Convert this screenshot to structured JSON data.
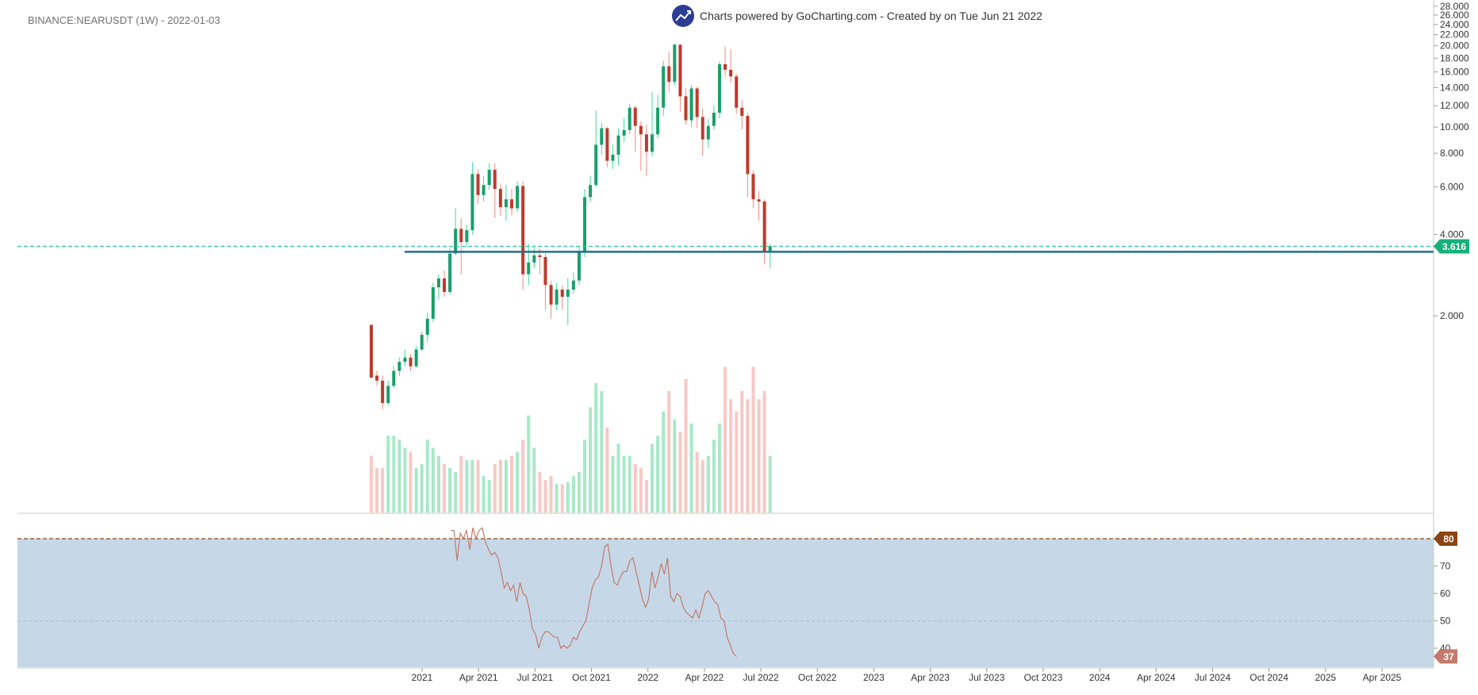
{
  "header": {
    "symbol_label": "BINANCE:NEARUSDT (1W) - 2022-01-03",
    "branding_text": "Charts powered by GoCharting.com - Created by  on Tue Jun 21 2022",
    "logo_icon": "trend-up-icon",
    "logo_color": "#2d3d95"
  },
  "colors": {
    "up": "#1a9e6a",
    "down": "#c0392b",
    "up_volume": "#a8e8c8",
    "down_volume": "#f8c8c4",
    "support_line": "#1f6d96",
    "last_price_line": "#2ec69a",
    "rsi_line": "#c47a6c",
    "rsi_band_fill": "#c6d8e8",
    "rsi_80_line": "#8b4513"
  },
  "chart_data": [
    {
      "type": "candlestick",
      "scale": "log",
      "ylim": [
        1.2,
        28
      ],
      "y_ticks": [
        "2.000",
        "4.000",
        "6.000",
        "8.000",
        "10.000",
        "12.000",
        "14.000",
        "16.000",
        "18.000",
        "20.000",
        "22.000",
        "24.000",
        "26.000",
        "28.000"
      ],
      "x_ticks": [
        "2021",
        "Apr 2021",
        "Jul 2021",
        "Oct 2021",
        "2022",
        "Apr 2022",
        "Jul 2022",
        "Oct 2022",
        "2023",
        "Apr 2023",
        "Jul 2023",
        "Oct 2023",
        "2024",
        "Apr 2024",
        "Jul 2024",
        "Oct 2024",
        "2025",
        "Apr 2025"
      ],
      "last_price_label": "3.616",
      "last_price": 3.616,
      "support_level": 3.45,
      "candles": [
        [
          1.85,
          1.18,
          1.85,
          1.55
        ],
        [
          1.2,
          1.15,
          1.25,
          1.1
        ],
        [
          1.15,
          0.95,
          1.2,
          0.9
        ],
        [
          0.95,
          1.1,
          1.15,
          0.93
        ],
        [
          1.1,
          1.25,
          1.3,
          1.08
        ],
        [
          1.25,
          1.35,
          1.4,
          1.2
        ],
        [
          1.35,
          1.4,
          1.5,
          1.3
        ],
        [
          1.4,
          1.3,
          1.45,
          1.25
        ],
        [
          1.3,
          1.5,
          1.55,
          1.28
        ],
        [
          1.5,
          1.7,
          1.75,
          1.48
        ],
        [
          1.7,
          1.95,
          2.05,
          1.6
        ],
        [
          1.95,
          2.55,
          2.65,
          1.9
        ],
        [
          2.55,
          2.75,
          2.85,
          2.3
        ],
        [
          2.75,
          2.45,
          2.95,
          2.35
        ],
        [
          2.45,
          3.4,
          3.55,
          2.4
        ],
        [
          3.4,
          4.2,
          5.0,
          3.35
        ],
        [
          4.2,
          3.75,
          4.6,
          2.85
        ],
        [
          3.75,
          4.15,
          4.35,
          3.6
        ],
        [
          4.15,
          6.7,
          7.4,
          4.0
        ],
        [
          6.7,
          5.6,
          7.0,
          5.2
        ],
        [
          5.6,
          6.1,
          6.6,
          5.3
        ],
        [
          6.1,
          6.95,
          7.35,
          5.85
        ],
        [
          6.95,
          5.9,
          7.35,
          4.6
        ],
        [
          5.9,
          5.05,
          6.2,
          4.7
        ],
        [
          5.05,
          5.4,
          6.1,
          4.5
        ],
        [
          5.4,
          5.0,
          5.9,
          4.7
        ],
        [
          5.0,
          6.05,
          6.3,
          4.85
        ],
        [
          6.05,
          2.85,
          6.3,
          2.5
        ],
        [
          2.85,
          3.15,
          3.7,
          2.6
        ],
        [
          3.15,
          3.35,
          3.6,
          3.0
        ],
        [
          3.35,
          3.3,
          3.55,
          2.85
        ],
        [
          3.3,
          2.6,
          3.4,
          2.1
        ],
        [
          2.6,
          2.2,
          2.7,
          1.95
        ],
        [
          2.2,
          2.5,
          2.65,
          2.1
        ],
        [
          2.5,
          2.35,
          2.6,
          2.1
        ],
        [
          2.35,
          2.5,
          2.75,
          1.85
        ],
        [
          2.5,
          2.7,
          2.9,
          2.4
        ],
        [
          2.7,
          3.45,
          3.6,
          2.6
        ],
        [
          3.45,
          5.5,
          5.9,
          3.3
        ],
        [
          5.5,
          6.1,
          6.6,
          5.3
        ],
        [
          6.1,
          8.6,
          11.5,
          6.0
        ],
        [
          8.6,
          9.9,
          10.4,
          7.9
        ],
        [
          9.9,
          7.5,
          10.0,
          7.1
        ],
        [
          7.5,
          7.9,
          8.6,
          7.0
        ],
        [
          7.9,
          9.3,
          9.9,
          7.2
        ],
        [
          9.3,
          9.75,
          10.8,
          8.8
        ],
        [
          9.75,
          11.8,
          12.2,
          9.4
        ],
        [
          11.8,
          10.1,
          12.0,
          8.1
        ],
        [
          10.1,
          9.4,
          10.5,
          6.9
        ],
        [
          9.4,
          8.1,
          10.2,
          6.6
        ],
        [
          8.1,
          9.4,
          13.5,
          7.8
        ],
        [
          9.4,
          11.8,
          13.2,
          9.1
        ],
        [
          11.8,
          16.8,
          17.6,
          11.0
        ],
        [
          16.8,
          14.7,
          19.0,
          13.5
        ],
        [
          14.7,
          20.2,
          20.4,
          14.3
        ],
        [
          20.2,
          13.0,
          20.2,
          11.4
        ],
        [
          13.0,
          10.6,
          13.9,
          10.2
        ],
        [
          10.6,
          13.9,
          14.3,
          10.0
        ],
        [
          13.9,
          10.9,
          14.1,
          9.9
        ],
        [
          10.9,
          9.0,
          11.7,
          7.8
        ],
        [
          9.0,
          10.1,
          10.7,
          8.4
        ],
        [
          10.1,
          11.3,
          12.0,
          9.8
        ],
        [
          11.3,
          17.1,
          17.5,
          10.8
        ],
        [
          17.1,
          16.3,
          19.9,
          15.4
        ],
        [
          16.3,
          15.4,
          19.4,
          14.6
        ],
        [
          15.4,
          11.8,
          15.7,
          11.2
        ],
        [
          11.8,
          11.0,
          12.6,
          9.8
        ],
        [
          11.0,
          6.7,
          11.3,
          5.5
        ],
        [
          6.7,
          5.4,
          6.9,
          5.0
        ],
        [
          5.4,
          5.3,
          5.8,
          4.5
        ],
        [
          5.3,
          3.45,
          5.4,
          3.1
        ],
        [
          3.45,
          3.62,
          3.7,
          3.0
        ]
      ],
      "volume": [
        28,
        22,
        22,
        38,
        38,
        36,
        32,
        30,
        22,
        24,
        36,
        32,
        28,
        24,
        22,
        20,
        28,
        26,
        26,
        26,
        18,
        16,
        24,
        26,
        26,
        28,
        30,
        36,
        48,
        32,
        20,
        16,
        18,
        14,
        14,
        15,
        18,
        20,
        36,
        52,
        64,
        60,
        42,
        28,
        34,
        28,
        28,
        24,
        22,
        16,
        34,
        38,
        50,
        60,
        46,
        40,
        66,
        44,
        30,
        26,
        28,
        36,
        44,
        72,
        56,
        50,
        60,
        56,
        72,
        56,
        60,
        28
      ]
    },
    {
      "type": "line",
      "name": "RSI",
      "ylim": [
        30,
        85
      ],
      "y_ticks": [
        "40",
        "50",
        "60",
        "70"
      ],
      "overbought_label": "80",
      "overbought": 80,
      "last_value_label": "37",
      "last_value": 37,
      "start_index": 16,
      "values": [
        83,
        83,
        72,
        82,
        80,
        83,
        76,
        84,
        80,
        83,
        84,
        79,
        76,
        74,
        75,
        73,
        68,
        62,
        64,
        61,
        63,
        57,
        64,
        60,
        59,
        54,
        47,
        45,
        40,
        44,
        46,
        46,
        45,
        44,
        44,
        40,
        41,
        40,
        41,
        44,
        43,
        46,
        48,
        50,
        56,
        62,
        65,
        66,
        70,
        77,
        78,
        70,
        64,
        63,
        66,
        68,
        68,
        72,
        73,
        68,
        63,
        58,
        55,
        58,
        68,
        62,
        66,
        71,
        67,
        73,
        59,
        57,
        60,
        59,
        55,
        53,
        52,
        51,
        54,
        51,
        55,
        60,
        61,
        59,
        57,
        56,
        51,
        50,
        44,
        41,
        38,
        37
      ]
    }
  ]
}
